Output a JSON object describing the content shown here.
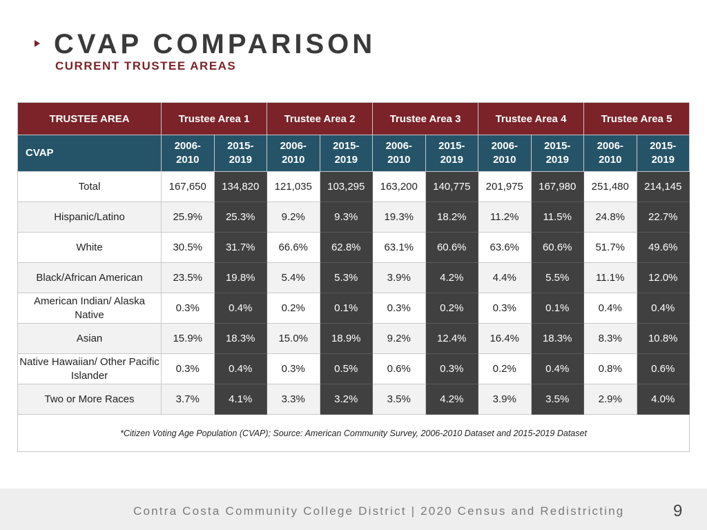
{
  "header": {
    "title": "CVAP COMPARISON",
    "subtitle": "CURRENT TRUSTEE AREAS"
  },
  "table": {
    "corner_label": "TRUSTEE AREA",
    "areas": [
      "Trustee Area 1",
      "Trustee Area 2",
      "Trustee Area 3",
      "Trustee Area 4",
      "Trustee Area 5"
    ],
    "period_label": "CVAP",
    "periods": [
      "2006-2010",
      "2015-2019"
    ],
    "rows": [
      {
        "label": "Total",
        "values": [
          "167,650",
          "134,820",
          "121,035",
          "103,295",
          "163,200",
          "140,775",
          "201,975",
          "167,980",
          "251,480",
          "214,145"
        ]
      },
      {
        "label": "Hispanic/Latino",
        "values": [
          "25.9%",
          "25.3%",
          "9.2%",
          "9.3%",
          "19.3%",
          "18.2%",
          "11.2%",
          "11.5%",
          "24.8%",
          "22.7%"
        ]
      },
      {
        "label": "White",
        "values": [
          "30.5%",
          "31.7%",
          "66.6%",
          "62.8%",
          "63.1%",
          "60.6%",
          "63.6%",
          "60.6%",
          "51.7%",
          "49.6%"
        ]
      },
      {
        "label": "Black/African American",
        "values": [
          "23.5%",
          "19.8%",
          "5.4%",
          "5.3%",
          "3.9%",
          "4.2%",
          "4.4%",
          "5.5%",
          "11.1%",
          "12.0%"
        ]
      },
      {
        "label": "American Indian/ Alaska Native",
        "values": [
          "0.3%",
          "0.4%",
          "0.2%",
          "0.1%",
          "0.3%",
          "0.2%",
          "0.3%",
          "0.1%",
          "0.4%",
          "0.4%"
        ]
      },
      {
        "label": "Asian",
        "values": [
          "15.9%",
          "18.3%",
          "15.0%",
          "18.9%",
          "9.2%",
          "12.4%",
          "16.4%",
          "18.3%",
          "8.3%",
          "10.8%"
        ]
      },
      {
        "label": "Native Hawaiian/ Other Pacific Islander",
        "values": [
          "0.3%",
          "0.4%",
          "0.3%",
          "0.5%",
          "0.6%",
          "0.3%",
          "0.2%",
          "0.4%",
          "0.8%",
          "0.6%"
        ]
      },
      {
        "label": "Two or More Races",
        "values": [
          "3.7%",
          "4.1%",
          "3.3%",
          "3.2%",
          "3.5%",
          "4.2%",
          "3.9%",
          "3.5%",
          "2.9%",
          "4.0%"
        ]
      }
    ],
    "footnote": "*Citizen Voting Age Population (CVAP); Source: American Community Survey, 2006-2010 Dataset and 2015-2019 Dataset"
  },
  "footer": {
    "text": "Contra Costa Community College District | 2020 Census and Redistricting",
    "page_number": "9"
  },
  "colors": {
    "header_red": "#7b2328",
    "header_teal": "#255468",
    "dark_cell": "#404040"
  }
}
